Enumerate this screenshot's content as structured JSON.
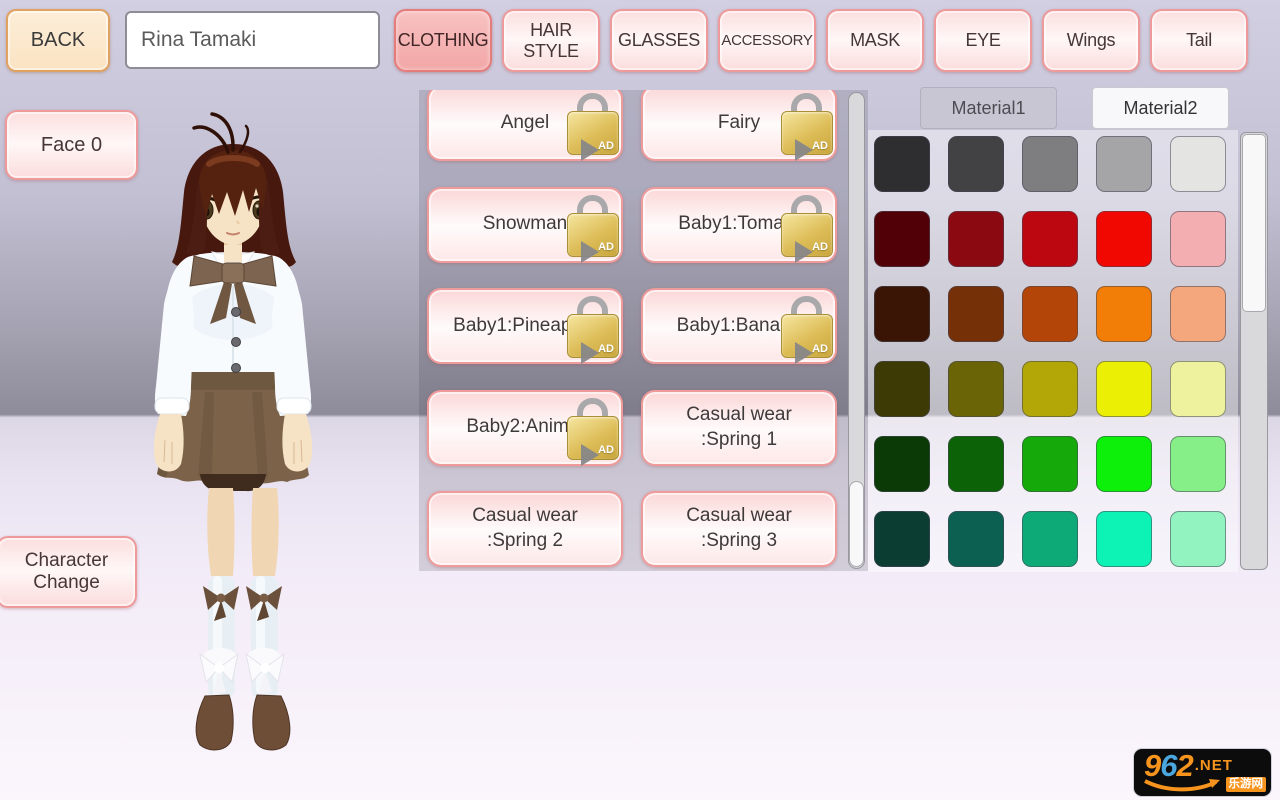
{
  "topbar": {
    "back_label": "BACK",
    "name_field": {
      "value": "Rina Tamaki"
    },
    "tabs": [
      {
        "label": "CLOTHING",
        "selected": true
      },
      {
        "label": "HAIR STYLE",
        "selected": false
      },
      {
        "label": "GLASSES",
        "selected": false
      },
      {
        "label": "ACCESSORY",
        "selected": false
      },
      {
        "label": "MASK",
        "selected": false
      },
      {
        "label": "EYE",
        "selected": false
      },
      {
        "label": "Wings",
        "selected": false
      },
      {
        "label": "Tail",
        "selected": false
      }
    ]
  },
  "left_panel": {
    "face_button_label": "Face 0",
    "character_change_button_label": "Character Change"
  },
  "character_colors": {
    "hair": "#55220f",
    "hair_dark": "#47180e",
    "hair_side": "#4c1d12",
    "hair_highlight": "#8a4326",
    "skin": "#f6e2c4",
    "skin_leg": "#f1d6b4",
    "blouse": "#f7fbfe",
    "bow": "#7d6450",
    "bow_dark": "#6f5742",
    "skirt": "#7b6248",
    "skirt_band": "#6e5840",
    "shorts": "#3f2c1e",
    "sock": "#e7eff4",
    "shoe": "#6f4e38",
    "eye": "#4a3a1e"
  },
  "clothing_panel": {
    "ad_badge": "AD",
    "items": [
      {
        "label": "Angel",
        "locked": true
      },
      {
        "label": "Fairy",
        "locked": true
      },
      {
        "label": "Snowman",
        "locked": true
      },
      {
        "label": "Baby1:Tomato",
        "locked": true
      },
      {
        "label": "Baby1:Pineapple",
        "locked": true
      },
      {
        "label": "Baby1:Banana",
        "locked": true
      },
      {
        "label": "Baby2:Animal",
        "locked": true
      },
      {
        "label": "Casual wear\n:Spring 1",
        "locked": false
      },
      {
        "label": "Casual wear\n:Spring 2",
        "locked": false
      },
      {
        "label": "Casual wear\n:Spring 3",
        "locked": false
      }
    ]
  },
  "material_tabs": [
    {
      "label": "Material1",
      "selected": false
    },
    {
      "label": "Material2",
      "selected": true
    }
  ],
  "palette": {
    "rows": [
      [
        "#2e2e30",
        "#424244",
        "#7e7e80",
        "#a5a5a7",
        "#e4e4e2"
      ],
      [
        "#520007",
        "#8b0911",
        "#bc0710",
        "#f10801",
        "#f3aeb2"
      ],
      [
        "#3a1404",
        "#763008",
        "#b34508",
        "#f27d07",
        "#f4a67c"
      ],
      [
        "#3d3a06",
        "#6b6406",
        "#b2a706",
        "#ebef04",
        "#eef29e"
      ],
      [
        "#0b3a06",
        "#0c6206",
        "#15aa0a",
        "#0df00a",
        "#86ef88"
      ],
      [
        "#0b3d33",
        "#0c6052",
        "#0daa78",
        "#0df2b5",
        "#92f3c1"
      ]
    ]
  },
  "watermark": {
    "digit_9": "9",
    "digit_6": "6",
    "digit_2": "2",
    "suffix": ".NET",
    "site_name_cn": "乐游网"
  }
}
